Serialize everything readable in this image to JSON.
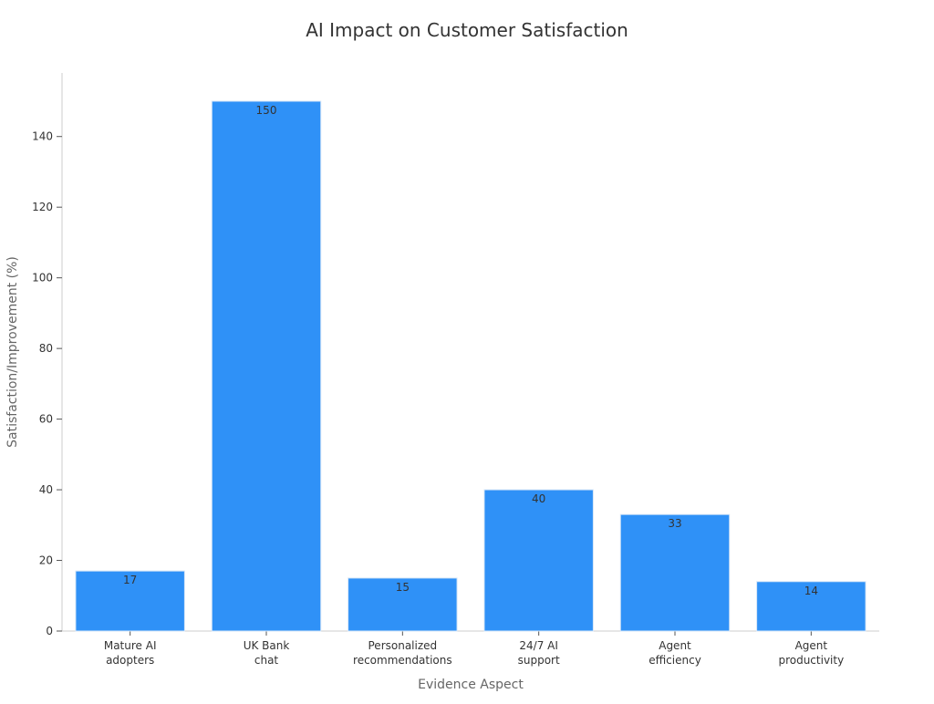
{
  "chart_data": {
    "type": "bar",
    "title": "AI Impact on Customer Satisfaction",
    "xlabel": "Evidence Aspect",
    "ylabel": "Satisfaction/Improvement (%)",
    "categories": [
      [
        "Mature AI",
        "adopters"
      ],
      [
        "UK Bank",
        "chat"
      ],
      [
        "Personalized",
        "recommendations"
      ],
      [
        "24/7 AI",
        "support"
      ],
      [
        "Agent",
        "efficiency"
      ],
      [
        "Agent",
        "productivity"
      ]
    ],
    "values": [
      17,
      150,
      15,
      40,
      33,
      14
    ],
    "value_labels": [
      "17",
      "150",
      "15",
      "40",
      "33",
      "14"
    ],
    "ylim": [
      0,
      158
    ],
    "yticks": [
      0,
      20,
      40,
      60,
      80,
      100,
      120,
      140
    ],
    "grid": false,
    "legend": "none",
    "colors": {
      "bar": "#2f91f7",
      "bar_edge": "#d6e6f7",
      "axis": "#cccccc",
      "text": "#333333",
      "label": "#666666"
    }
  }
}
